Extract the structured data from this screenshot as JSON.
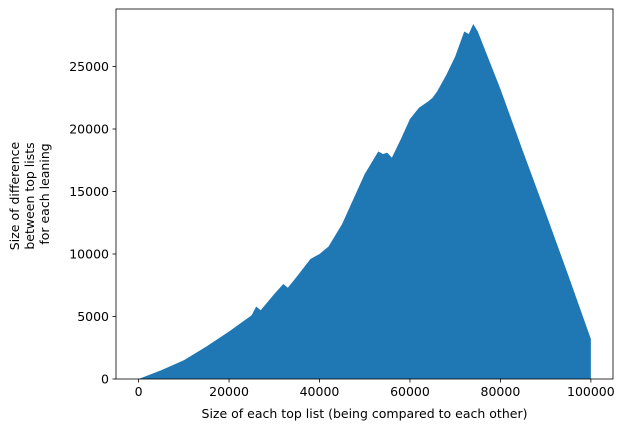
{
  "chart_data": {
    "type": "area",
    "xlabel": "Size of each top list (being compared to each other)",
    "ylabel_lines": [
      "Size of difference",
      "between top lists",
      "for each leaning"
    ],
    "xlim": [
      -4995,
      104895
    ],
    "ylim": [
      0,
      29600
    ],
    "xticks": [
      0,
      20000,
      40000,
      60000,
      80000,
      100000
    ],
    "yticks": [
      0,
      5000,
      10000,
      15000,
      20000,
      25000
    ],
    "xtick_labels": [
      "0",
      "20000",
      "40000",
      "60000",
      "80000",
      "100000"
    ],
    "ytick_labels": [
      "0",
      "5000",
      "10000",
      "15000",
      "20000",
      "25000"
    ],
    "color": "#1f77b4",
    "x": [
      0,
      5000,
      10000,
      15000,
      20000,
      25000,
      26000,
      27000,
      30000,
      32000,
      33000,
      35000,
      38000,
      40000,
      42000,
      45000,
      48000,
      50000,
      53000,
      54000,
      55000,
      56000,
      58000,
      60000,
      62000,
      64000,
      65000,
      66000,
      68000,
      70000,
      72000,
      73000,
      74000,
      75000,
      80000,
      85000,
      90000,
      95000,
      100000,
      100000
    ],
    "y": [
      0,
      700,
      1500,
      2600,
      3800,
      5100,
      5800,
      5500,
      6800,
      7600,
      7300,
      8200,
      9600,
      10000,
      10600,
      12400,
      14800,
      16400,
      18200,
      18000,
      18100,
      17700,
      19200,
      20800,
      21700,
      22200,
      22500,
      23000,
      24300,
      25800,
      27800,
      27600,
      28400,
      27800,
      23200,
      18200,
      13300,
      8300,
      3200,
      0
    ]
  }
}
